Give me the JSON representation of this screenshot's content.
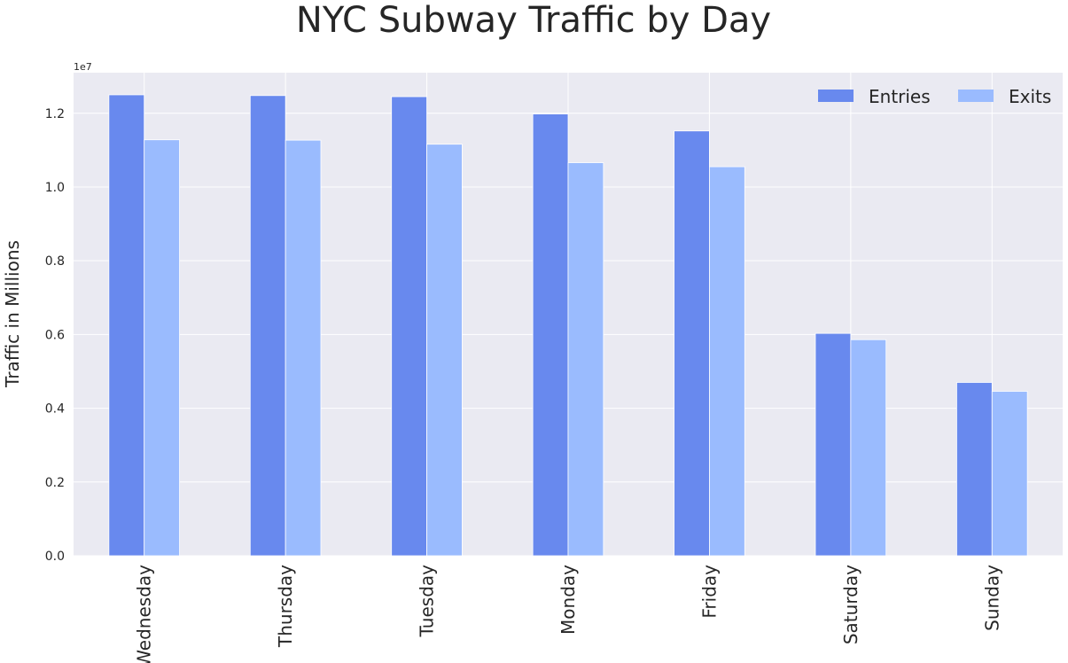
{
  "chart_data": {
    "type": "bar",
    "title": "NYC Subway Traffic by Day",
    "xlabel": "",
    "ylabel": "Traffic in Millions",
    "y_offset_label": "1e7",
    "categories": [
      "Wednesday",
      "Thursday",
      "Tuesday",
      "Monday",
      "Friday",
      "Saturday",
      "Sunday"
    ],
    "series": [
      {
        "name": "Entries",
        "color": "#6889ee",
        "values": [
          12500000,
          12480000,
          12450000,
          11980000,
          11520000,
          6030000,
          4700000
        ]
      },
      {
        "name": "Exits",
        "color": "#9abbfe",
        "values": [
          11280000,
          11270000,
          11160000,
          10660000,
          10550000,
          5860000,
          4460000
        ]
      }
    ],
    "ylim": [
      0,
      13100000
    ],
    "yticks": [
      0,
      2000000,
      4000000,
      6000000,
      8000000,
      10000000,
      12000000
    ],
    "ytick_labels": [
      "0.0",
      "0.2",
      "0.4",
      "0.6",
      "0.8",
      "1.0",
      "1.2"
    ],
    "grid": true,
    "legend": {
      "position": "top-right",
      "columns": 2
    },
    "colors": {
      "plot_background": "#eaeaf2",
      "grid": "#ffffff",
      "text": "#262626"
    }
  }
}
